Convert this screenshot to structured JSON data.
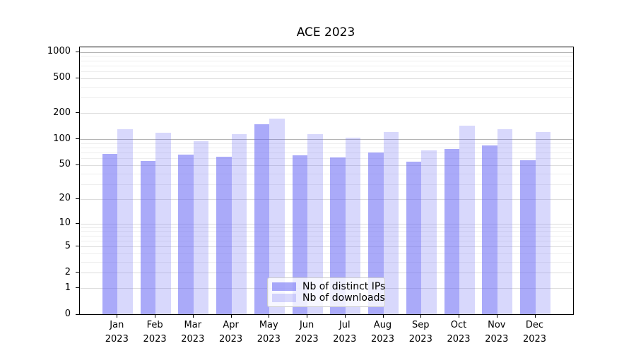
{
  "title": "ACE 2023",
  "legend": {
    "items": [
      {
        "label": "Nb of distinct IPs",
        "color": "rgba(106,106,244,0.57)"
      },
      {
        "label": "Nb of downloads",
        "color": "rgba(106,106,244,0.26)"
      }
    ]
  },
  "colors": {
    "bar_distinct_ips": "rgba(106,106,244,0.57)",
    "bar_downloads": "rgba(106,106,244,0.26)",
    "grid_major": "#b3b3b3",
    "grid_labeled": "#dddddd",
    "grid_minor": "#eeeeee"
  },
  "chart_data": {
    "type": "bar",
    "title": "ACE 2023",
    "categories": [
      "Jan 2023",
      "Feb 2023",
      "Mar 2023",
      "Apr 2023",
      "May 2023",
      "Jun 2023",
      "Jul 2023",
      "Aug 2023",
      "Sep 2023",
      "Oct 2023",
      "Nov 2023",
      "Dec 2023"
    ],
    "series": [
      {
        "name": "Nb of distinct IPs",
        "values": [
          67,
          55,
          66,
          62,
          148,
          64,
          61,
          69,
          54,
          76,
          83,
          56
        ]
      },
      {
        "name": "Nb of downloads",
        "values": [
          130,
          118,
          93,
          114,
          171,
          112,
          102,
          120,
          74,
          142,
          130,
          120
        ]
      }
    ],
    "yscale": "log1p",
    "ylim": [
      0,
      1100
    ],
    "yticks": [
      0,
      1,
      2,
      5,
      10,
      20,
      50,
      100,
      200,
      500,
      1000
    ],
    "ytick_labels": [
      "0",
      "1",
      "2",
      "5",
      "10",
      "20",
      "50",
      "100",
      "200",
      "500",
      "1000"
    ],
    "grid_major_values": [
      100,
      1000
    ],
    "grid_labeled_values": [
      1,
      2,
      5,
      10,
      20,
      50,
      200,
      500
    ],
    "grid_minor_values": [
      3,
      4,
      6,
      7,
      8,
      9,
      30,
      40,
      60,
      70,
      80,
      90,
      300,
      400,
      600,
      700,
      800,
      900
    ],
    "xlabel": "",
    "ylabel": "",
    "grid": true,
    "legend_position": "lower center"
  }
}
